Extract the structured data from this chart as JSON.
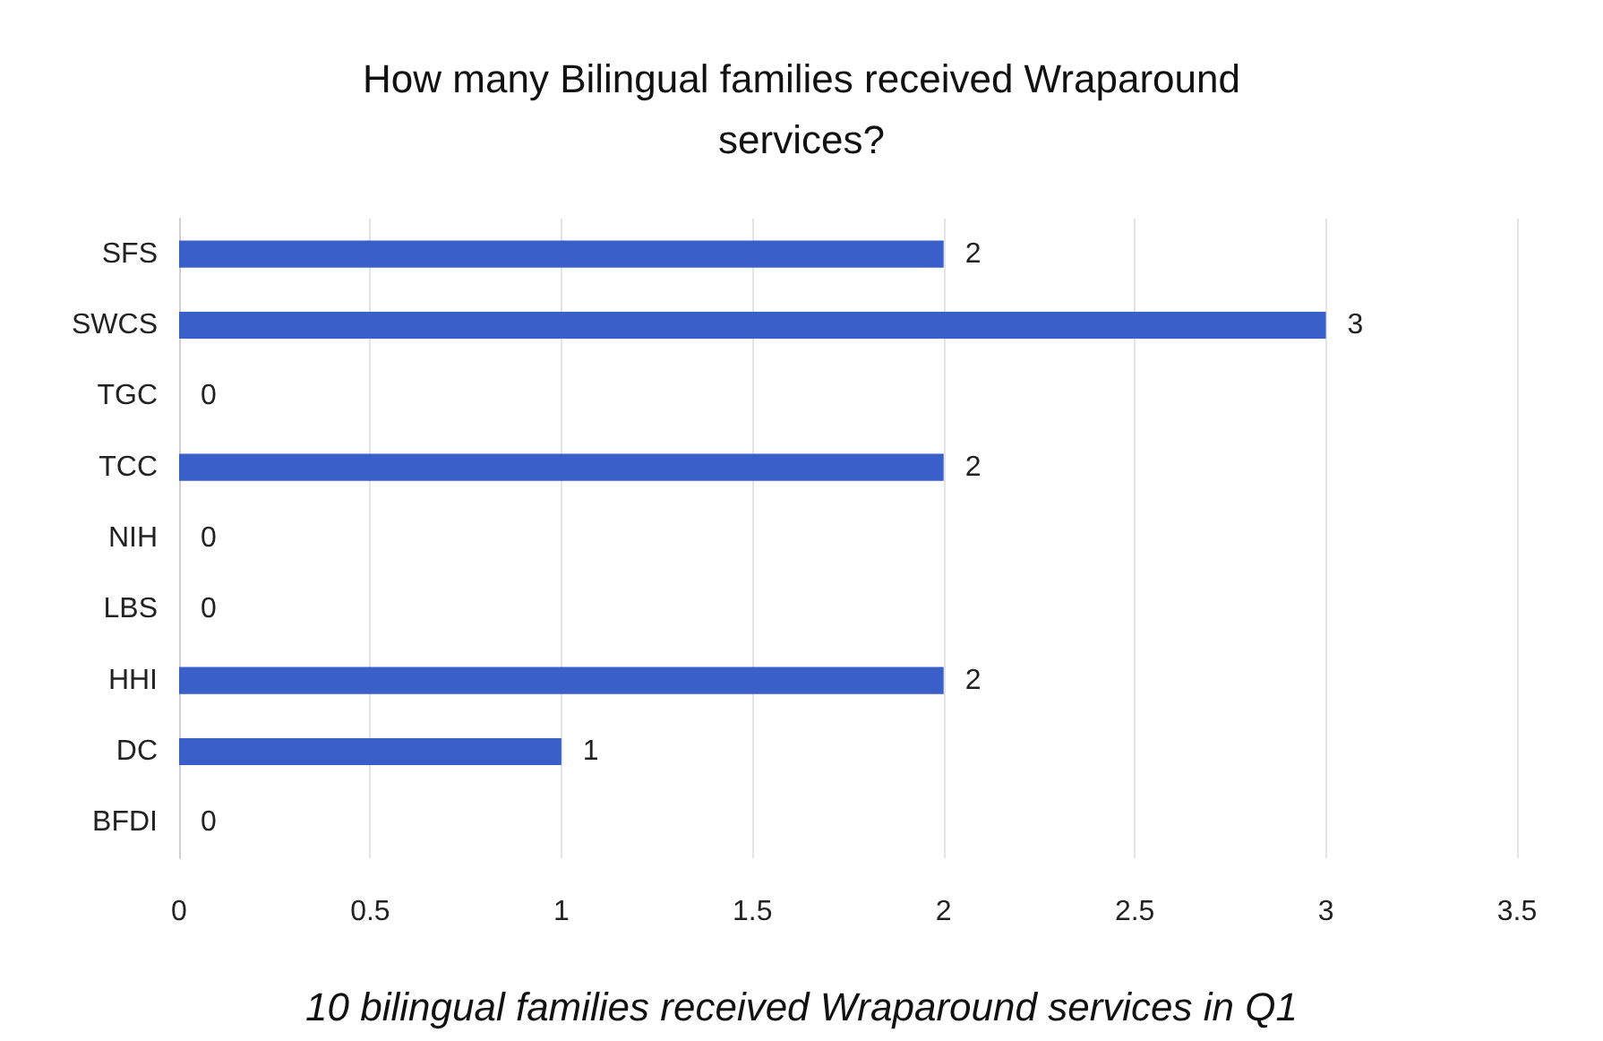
{
  "chart_data": {
    "type": "bar",
    "orientation": "horizontal",
    "title": "How many Bilingual families received Wraparound services?",
    "categories": [
      "SFS",
      "SWCS",
      "TGC",
      "TCC",
      "NIH",
      "LBS",
      "HHI",
      "DC",
      "BFDI"
    ],
    "values": [
      2,
      3,
      0,
      2,
      0,
      0,
      2,
      1,
      0
    ],
    "color": "#3a5fc8",
    "xlim": [
      0,
      3.5
    ],
    "xticks": [
      0,
      0.5,
      1,
      1.5,
      2,
      2.5,
      3,
      3.5
    ],
    "grid": "x",
    "data_labels": true,
    "annotations": [
      "10 bilingual families received Wraparound services in Q1"
    ]
  }
}
